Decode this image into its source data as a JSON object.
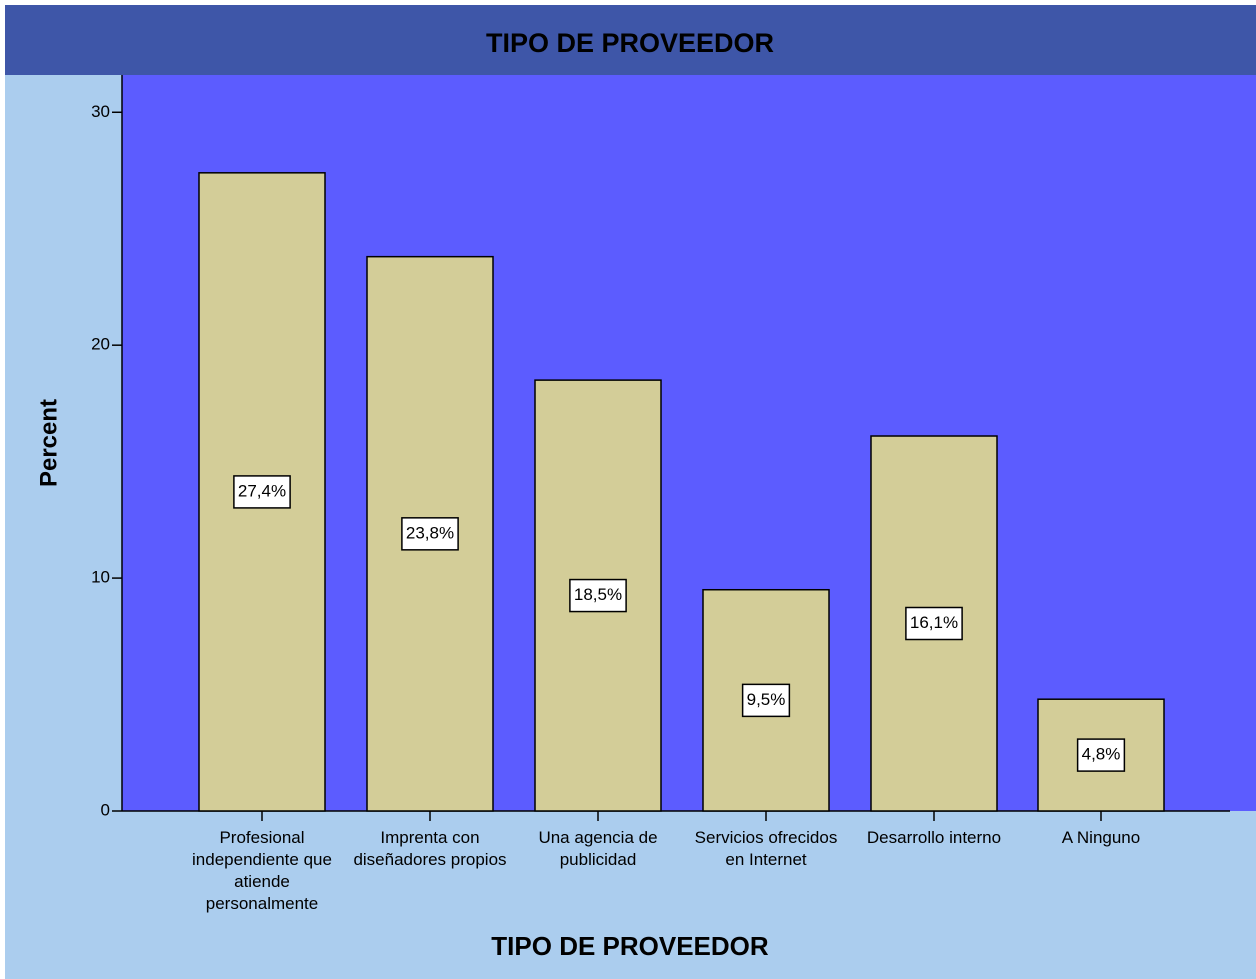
{
  "chart_data": {
    "type": "bar",
    "title": "TIPO DE PROVEEDOR",
    "x_label": "TIPO DE PROVEEDOR",
    "y_label": "Percent",
    "categories": [
      "Profesional independiente que atiende personalmente",
      "Imprenta con diseñadores propios",
      "Una agencia de publicidad",
      "Servicios ofrecidos en Internet",
      "Desarrollo interno",
      "A Ninguno"
    ],
    "values": [
      27.4,
      23.8,
      18.5,
      9.5,
      16.1,
      4.8
    ],
    "value_labels": [
      "27,4%",
      "23,8%",
      "18,5%",
      "9,5%",
      "16,1%",
      "4,8%"
    ],
    "color": "#d3cd98",
    "ylim": [
      0,
      31.6
    ],
    "yticks": [
      0,
      10,
      20,
      30
    ],
    "grid": false
  }
}
